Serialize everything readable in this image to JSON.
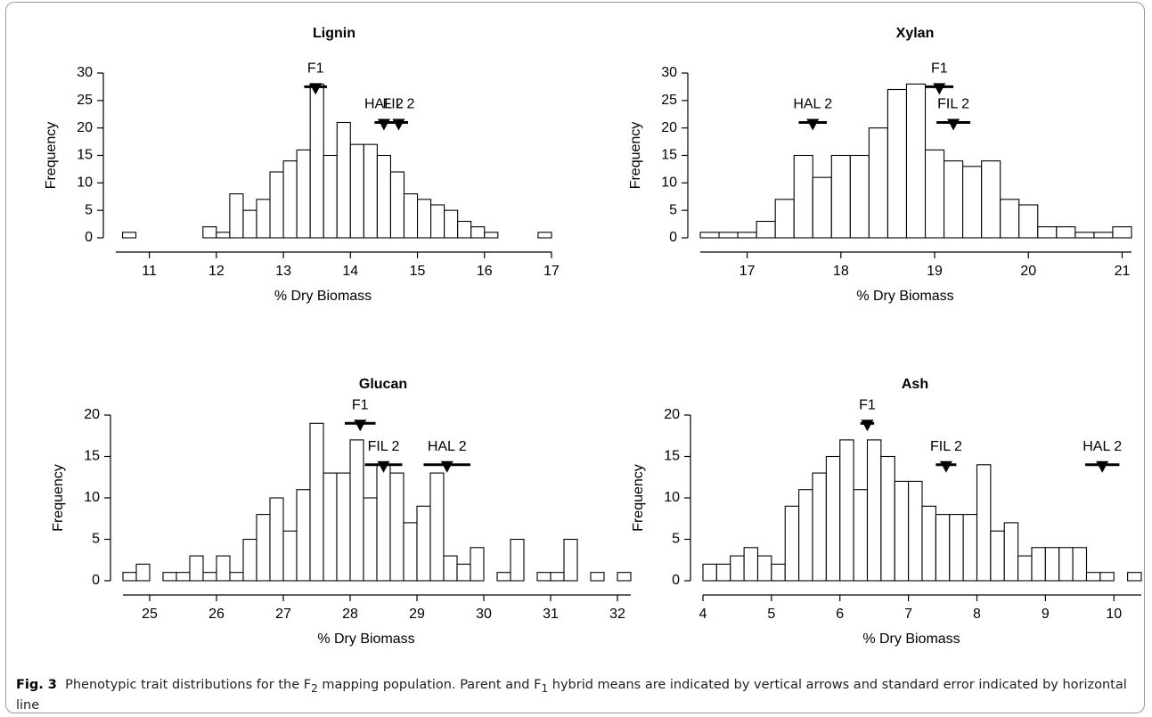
{
  "chart_data": [
    {
      "type": "histogram",
      "title": "Lignin",
      "xlabel": "% Dry Biomass",
      "ylabel": "Frequency",
      "color": "#ffffff",
      "bins": [
        10.6,
        10.8,
        11.0,
        11.2,
        11.4,
        11.6,
        11.8,
        12.0,
        12.2,
        12.4,
        12.6,
        12.8,
        13.0,
        13.2,
        13.4,
        13.6,
        13.8,
        14.0,
        14.2,
        14.4,
        14.6,
        14.8,
        15.0,
        15.2,
        15.4,
        15.6,
        15.8,
        16.0,
        16.2,
        16.4,
        16.6,
        16.8,
        17.0
      ],
      "values": [
        1,
        0,
        0,
        0,
        0,
        0,
        2,
        1,
        8,
        5,
        7,
        12,
        14,
        16,
        28,
        15,
        21,
        17,
        17,
        15,
        12,
        8,
        7,
        6,
        5,
        3,
        2,
        1,
        0,
        0,
        0,
        1
      ],
      "xlim": [
        10.5,
        17
      ],
      "xticks": [
        11,
        12,
        13,
        14,
        15,
        16,
        17
      ],
      "ylim": [
        0,
        30
      ],
      "yticks": [
        0,
        5,
        10,
        15,
        20,
        25,
        30
      ],
      "markers": [
        {
          "label": "F1",
          "x": 13.48,
          "y": 27.5,
          "se": 0.17
        },
        {
          "label": "HAL 2",
          "x": 14.5,
          "y": 21,
          "se": 0.14
        },
        {
          "label": "FIL 2",
          "x": 14.72,
          "y": 21,
          "se": 0.14
        }
      ]
    },
    {
      "type": "histogram",
      "title": "Xylan",
      "xlabel": "% Dry Biomass",
      "ylabel": "Frequency",
      "color": "#ffffff",
      "bins": [
        16.5,
        16.7,
        16.9,
        17.1,
        17.3,
        17.5,
        17.7,
        17.9,
        18.1,
        18.3,
        18.5,
        18.7,
        18.9,
        19.1,
        19.3,
        19.5,
        19.7,
        19.9,
        20.1,
        20.3,
        20.5,
        20.7,
        20.9,
        21.1
      ],
      "values": [
        1,
        1,
        1,
        3,
        7,
        15,
        11,
        15,
        15,
        20,
        27,
        28,
        16,
        14,
        13,
        14,
        7,
        6,
        2,
        2,
        1,
        1,
        2
      ],
      "xlim": [
        16.5,
        21.1
      ],
      "xticks": [
        17,
        18,
        19,
        20,
        21
      ],
      "ylim": [
        0,
        30
      ],
      "yticks": [
        0,
        5,
        10,
        15,
        20,
        25,
        30
      ],
      "markers": [
        {
          "label": "HAL 2",
          "x": 17.7,
          "y": 21,
          "se": 0.15
        },
        {
          "label": "F1",
          "x": 19.05,
          "y": 27.5,
          "se": 0.15
        },
        {
          "label": "FIL 2",
          "x": 19.2,
          "y": 21,
          "se": 0.18
        }
      ]
    },
    {
      "type": "histogram",
      "title": "Glucan",
      "xlabel": "% Dry Biomass",
      "ylabel": "Frequency",
      "color": "#ffffff",
      "bins": [
        24.6,
        24.8,
        25.0,
        25.2,
        25.4,
        25.6,
        25.8,
        26.0,
        26.2,
        26.4,
        26.6,
        26.8,
        27.0,
        27.2,
        27.4,
        27.6,
        27.8,
        28.0,
        28.2,
        28.4,
        28.6,
        28.8,
        29.0,
        29.2,
        29.4,
        29.6,
        29.8,
        30.0,
        30.2,
        30.4,
        30.6,
        30.8,
        31.0,
        31.2,
        31.4,
        31.6,
        31.8,
        32.0,
        32.2
      ],
      "values": [
        1,
        2,
        0,
        1,
        1,
        3,
        1,
        3,
        1,
        5,
        8,
        10,
        6,
        11,
        19,
        13,
        13,
        17,
        10,
        14,
        13,
        7,
        9,
        13,
        3,
        2,
        4,
        0,
        1,
        5,
        0,
        1,
        1,
        5,
        0,
        1,
        0,
        1
      ],
      "xlim": [
        24.6,
        32.2
      ],
      "xticks": [
        25,
        26,
        27,
        28,
        29,
        30,
        31,
        32
      ],
      "ylim": [
        0,
        20
      ],
      "yticks": [
        0,
        5,
        10,
        15,
        20
      ],
      "markers": [
        {
          "label": "F1",
          "x": 28.15,
          "y": 19,
          "se": 0.23
        },
        {
          "label": "FIL 2",
          "x": 28.5,
          "y": 14,
          "se": 0.28
        },
        {
          "label": "HAL 2",
          "x": 29.45,
          "y": 14,
          "se": 0.35
        }
      ]
    },
    {
      "type": "histogram",
      "title": "Ash",
      "xlabel": "% Dry Biomass",
      "ylabel": "Frequency",
      "color": "#ffffff",
      "bins": [
        4.0,
        4.2,
        4.4,
        4.6,
        4.8,
        5.0,
        5.2,
        5.4,
        5.6,
        5.8,
        6.0,
        6.2,
        6.4,
        6.6,
        6.8,
        7.0,
        7.2,
        7.4,
        7.6,
        7.8,
        8.0,
        8.2,
        8.4,
        8.6,
        8.8,
        9.0,
        9.2,
        9.4,
        9.6,
        9.8,
        10.0,
        10.2,
        10.4
      ],
      "values": [
        2,
        2,
        3,
        4,
        3,
        2,
        9,
        11,
        13,
        15,
        17,
        11,
        17,
        15,
        12,
        12,
        9,
        8,
        8,
        8,
        14,
        6,
        7,
        3,
        4,
        4,
        4,
        4,
        1,
        1,
        0,
        1
      ],
      "xlim": [
        4,
        10.4
      ],
      "xticks": [
        4,
        5,
        6,
        7,
        8,
        9,
        10
      ],
      "ylim": [
        0,
        20
      ],
      "yticks": [
        0,
        5,
        10,
        15,
        20
      ],
      "markers": [
        {
          "label": "F1",
          "x": 6.4,
          "y": 19,
          "se": 0.1
        },
        {
          "label": "FIL 2",
          "x": 7.55,
          "y": 14,
          "se": 0.15
        },
        {
          "label": "HAL 2",
          "x": 9.83,
          "y": 14,
          "se": 0.25
        }
      ]
    }
  ],
  "caption": {
    "label": "Fig. 3",
    "text": [
      "Phenotypic trait distributions for the F",
      "2",
      " mapping population. Parent and F",
      "1",
      " hybrid means are indicated by vertical arrows and standard error indicated by horizontal line"
    ]
  }
}
